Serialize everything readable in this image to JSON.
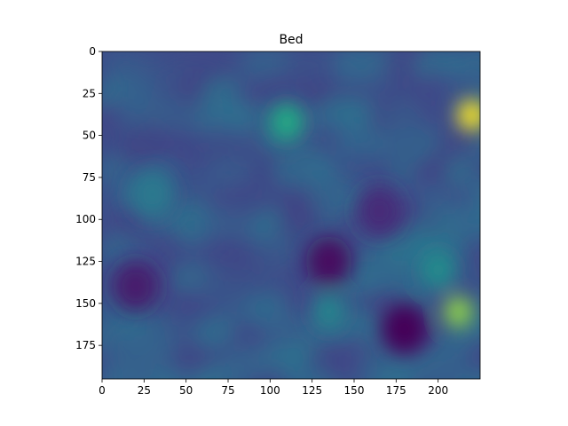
{
  "chart_data": {
    "type": "heatmap",
    "title": "Bed",
    "xlabel": "",
    "ylabel": "",
    "xlim": [
      0,
      225
    ],
    "ylim": [
      195,
      0
    ],
    "x_ticks": [
      0,
      25,
      50,
      75,
      100,
      125,
      150,
      175,
      200
    ],
    "y_ticks": [
      0,
      25,
      50,
      75,
      100,
      125,
      150,
      175
    ],
    "colormap": "viridis",
    "colorbar": false,
    "grid": false,
    "value_range": [
      0,
      1
    ],
    "features": [
      {
        "x": 220,
        "y": 38,
        "value": 1.0
      },
      {
        "x": 212,
        "y": 155,
        "value": 0.9
      },
      {
        "x": 110,
        "y": 42,
        "value": 0.75
      },
      {
        "x": 200,
        "y": 130,
        "value": 0.6
      },
      {
        "x": 135,
        "y": 155,
        "value": 0.55
      },
      {
        "x": 30,
        "y": 85,
        "value": 0.5
      },
      {
        "x": 20,
        "y": 140,
        "value": 0.1
      },
      {
        "x": 180,
        "y": 165,
        "value": 0.02
      },
      {
        "x": 135,
        "y": 125,
        "value": 0.05
      },
      {
        "x": 165,
        "y": 95,
        "value": 0.15
      }
    ]
  }
}
